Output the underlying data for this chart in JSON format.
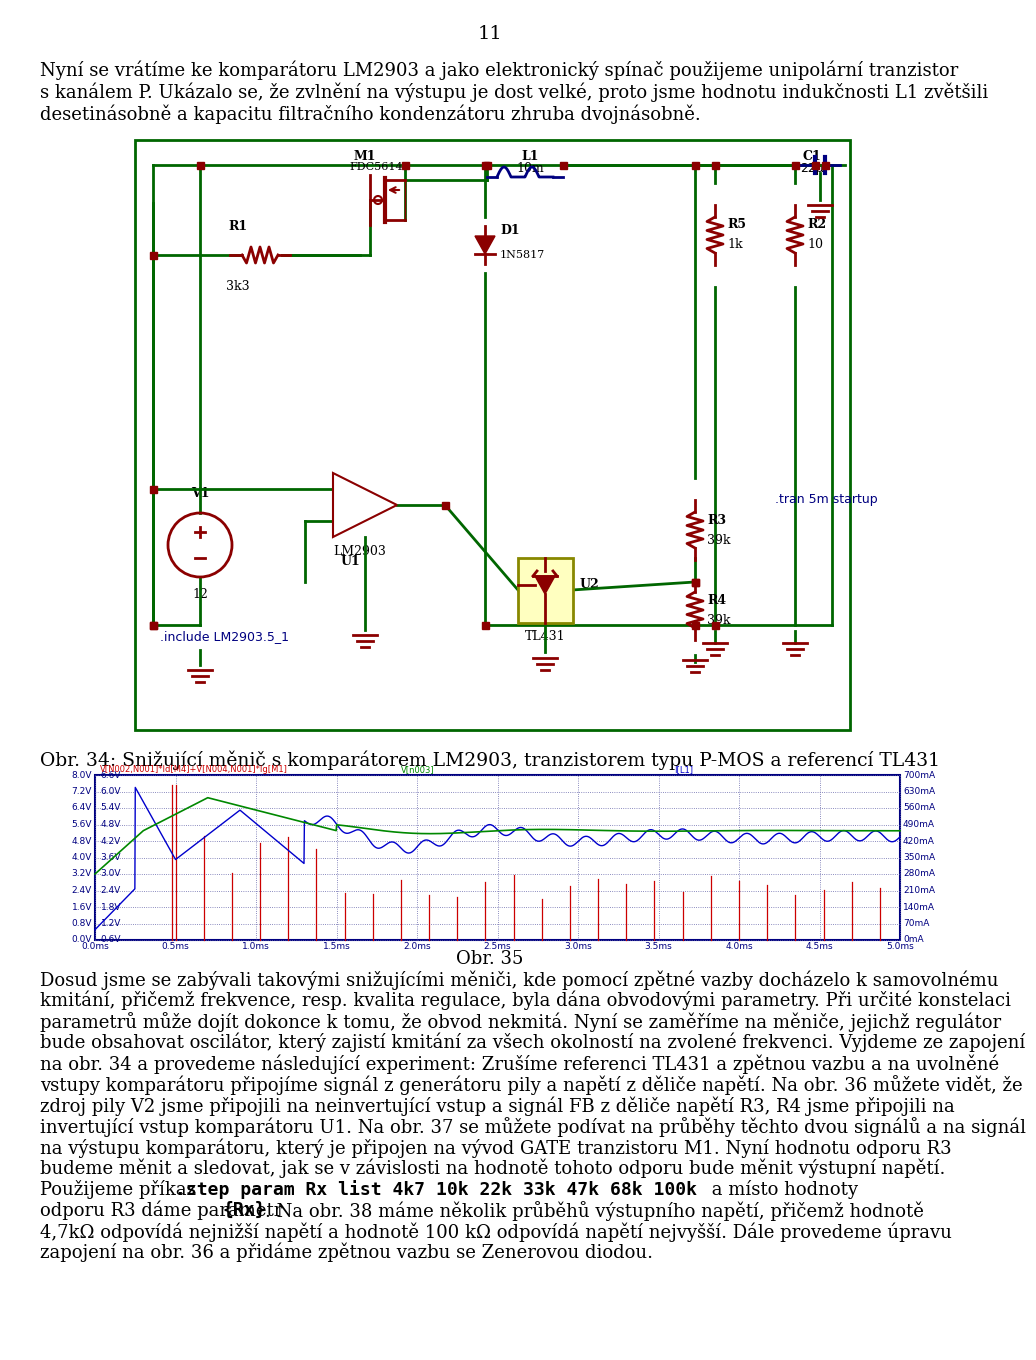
{
  "page_number": "11",
  "bg_color": "#ffffff",
  "font_size_body": 13.0,
  "font_size_caption": 13.5,
  "paragraph1_lines": [
    "Nyní se vrátíme ke komparátoru LM2903 a jako elektronický spínač použijeme unipolární tranzistor",
    "s kanálem P. Ukázalo se, že zvlnění na výstupu je dost velké, proto jsme hodnotu indukčnosti L1 zvětšili",
    "desetinásobně a kapacitu filtračního kondenzátoru zhruba dvojnásobně."
  ],
  "circuit_label": "Obr. 34: Snižující měnič s komparátorem LM2903, tranzistorem typu P-MOS a referencí TL431",
  "graph_caption": "Obr. 35",
  "graph_legend_red": "V[N002,N001]*Id[M4]+V[N004,N001]*Ig[M1]",
  "graph_legend_green": "V[n003]",
  "graph_legend_blue": "I[L1]",
  "graph_left_labels": [
    "8.0V",
    "7.2V",
    "6.4V",
    "5.6V",
    "4.8V",
    "4.0V",
    "3.2V",
    "2.4V",
    "1.6V",
    "0.8V",
    "0.0V"
  ],
  "graph_left2_labels": [
    "6.6V",
    "6.0V",
    "5.4V",
    "4.8V",
    "4.2V",
    "3.6V",
    "3.0V",
    "2.4V",
    "1.8V",
    "1.2V",
    "0.6V"
  ],
  "graph_right_labels": [
    "700mA",
    "630mA",
    "560mA",
    "490mA",
    "420mA",
    "350mA",
    "280mA",
    "210mA",
    "140mA",
    "70mA",
    "0mA"
  ],
  "graph_x_labels": [
    "0.0ms",
    "0.5ms",
    "1.0ms",
    "1.5ms",
    "2.0ms",
    "2.5ms",
    "3.0ms",
    "3.5ms",
    "4.0ms",
    "4.5ms",
    "5.0ms"
  ],
  "graph_border_color": "#000080",
  "graph_line_blue": "#0000cc",
  "graph_line_green": "#008800",
  "graph_line_red": "#cc0000",
  "graph_grid_color": "#6666aa",
  "p2_lines": [
    "Dosud jsme se zabývali takovými snižujícími měniči, kde pomocí zpětné vazby docházelo k samovolnému",
    "kmitání, přičemž frekvence, resp. kvalita regulace, byla dána obvodovými parametry. Při určité konstelaci",
    "parametrů může dojít dokonce k tomu, že obvod nekmitá. Nyní se zaměříme na měniče, jejichž regulátor",
    "bude obsahovat oscilátor, který zajistí kmitání za všech okolností na zvolené frekvenci. Vyjdeme ze zapojení",
    "na obr. 34 a provedeme následující experiment: Zrušíme referenci TL431 a zpětnou vazbu a na uvolněné",
    "vstupy komparátoru připojíme signál z generátoru pily a napětí z děliče napětí. Na obr. 36 můžete vidět, že",
    "zdroj pily V2 jsme připojili na neinvertující vstup a signál FB z děliče napětí R3, R4 jsme připojili na",
    "invertující vstup komparátoru U1. Na obr. 37 se můžete podívat na průběhy těchto dvou signálů a na signál",
    "na výstupu komparátoru, který je připojen na vývod GATE tranzistoru M1. Nyní hodnotu odporu R3",
    "budeme měnit a sledovat, jak se v závislosti na hodnotě tohoto odporu bude měnit výstupní napětí."
  ],
  "step_line_before": "Použijeme příkaz ",
  "step_line_bold": ".step param Rx list 4k7 10k 22k 33k 47k 68k 100k",
  "step_line_after": " a místo hodnoty",
  "end_line1_before": "odporu R3 dáme parametr ",
  "end_line1_bold": "{Rx}",
  "end_line1_after": ". Na obr. 38 máme několik průběhů výstupního napětí, přičemž hodnotě",
  "end_line2": "4,7kΩ odpovídá nejnižší napětí a hodnotě 100 kΩ odpovídá napětí nejvyšší. Dále provedeme úpravu",
  "end_line3": "zapojení na obr. 36 a přidáme zpětnou vazbu se Zenerovou diodou."
}
